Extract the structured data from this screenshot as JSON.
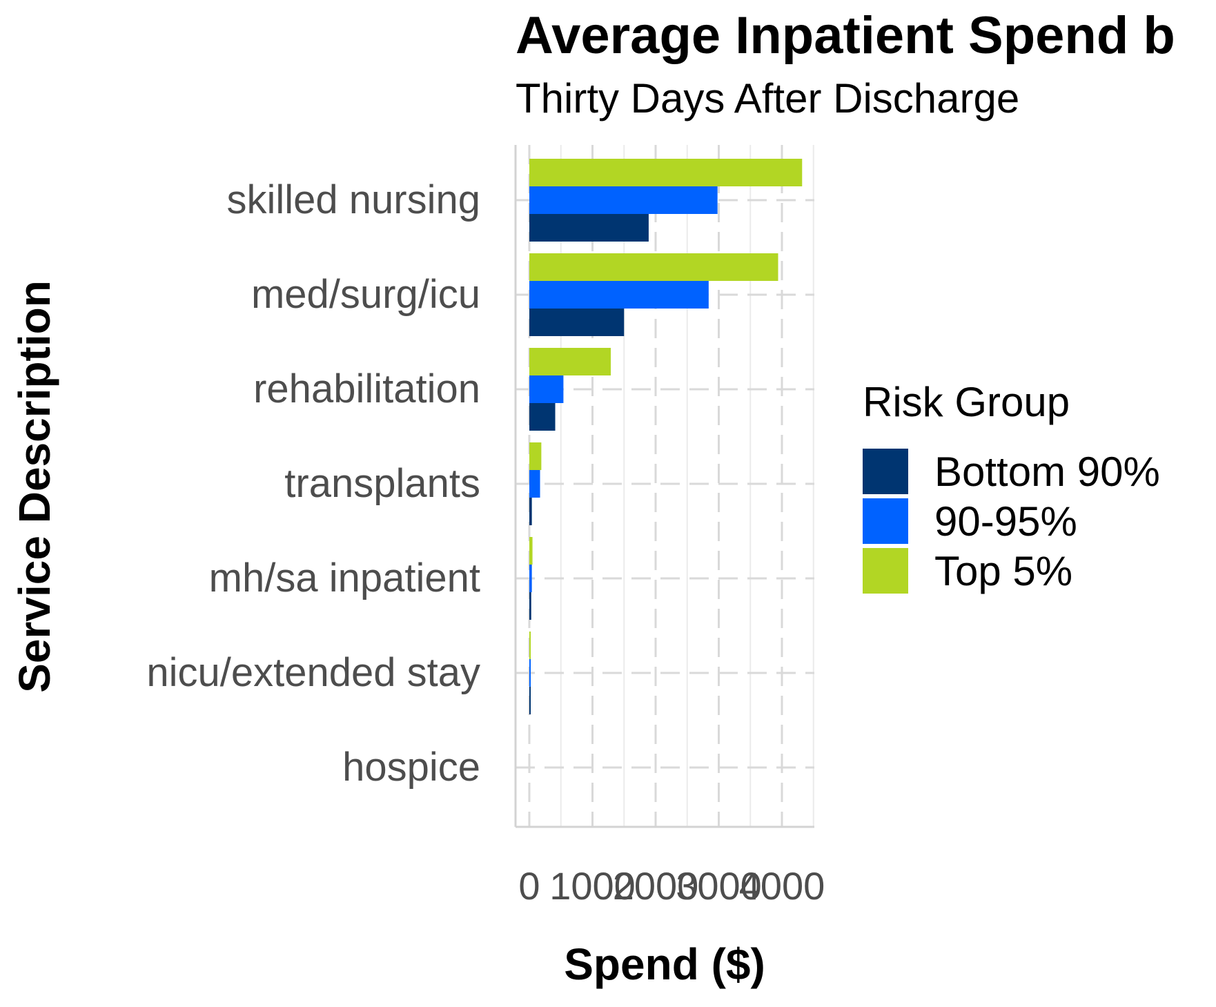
{
  "chart_data": {
    "type": "bar",
    "orientation": "horizontal",
    "title": "Average Inpatient Spend b",
    "subtitle": "Thirty Days After Discharge",
    "xlabel": "Spend ($)",
    "ylabel": "Service Description",
    "categories": [
      "skilled nursing",
      "med/surg/icu",
      "rehabilitation",
      "transplants",
      "mh/sa inpatient",
      "nicu/extended stay",
      "hospice"
    ],
    "x_ticks": [
      0,
      1000,
      2000,
      3000,
      4000
    ],
    "x_tick_labels": [
      "0",
      "1000",
      "2000",
      "3000",
      "4000"
    ],
    "xlim": [
      -200,
      4500
    ],
    "grid": true,
    "legend_title": "Risk Group",
    "legend_position": "right",
    "series": [
      {
        "name": "Bottom 90%",
        "color": "#003571",
        "values": [
          1890,
          1500,
          410,
          40,
          30,
          10,
          0
        ]
      },
      {
        "name": "90-95%",
        "color": "#0062ff",
        "values": [
          2980,
          2840,
          540,
          170,
          40,
          15,
          0
        ]
      },
      {
        "name": "Top 5%",
        "color": "#b2d624",
        "values": [
          4320,
          3940,
          1290,
          190,
          50,
          20,
          0
        ]
      }
    ]
  }
}
